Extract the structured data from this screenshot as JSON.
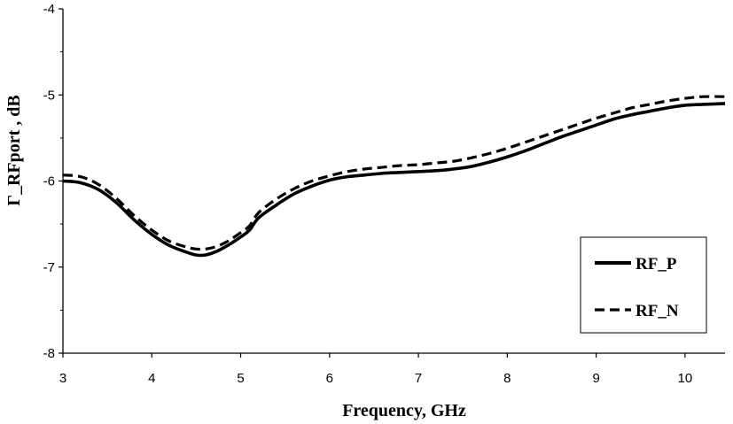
{
  "chart_data": {
    "type": "line",
    "xlabel": "Frequency, GHz",
    "ylabel": "Γ_RFport , dB",
    "xlim": [
      3,
      10.45
    ],
    "ylim": [
      -8,
      -4
    ],
    "xticks": [
      3,
      4,
      5,
      6,
      7,
      8,
      9,
      10
    ],
    "yticks": [
      -8,
      -7,
      -6,
      -5,
      -4
    ],
    "xtick_labels": [
      "3",
      "4",
      "5",
      "6",
      "7",
      "8",
      "9",
      "10"
    ],
    "ytick_labels": [
      "-8",
      "-7",
      "-6",
      "-5",
      "-4"
    ],
    "grid": false,
    "legend_position": "bottom-right",
    "series": [
      {
        "name": "RF_P",
        "style": "solid",
        "color": "#000000",
        "x": [
          3.0,
          3.2,
          3.4,
          3.6,
          3.8,
          4.0,
          4.2,
          4.4,
          4.5,
          4.6,
          4.7,
          4.8,
          4.9,
          5.0,
          5.1,
          5.2,
          5.4,
          5.6,
          5.8,
          6.0,
          6.2,
          6.4,
          6.6,
          6.8,
          7.0,
          7.2,
          7.4,
          7.6,
          7.8,
          8.0,
          8.2,
          8.4,
          8.6,
          8.8,
          9.0,
          9.2,
          9.4,
          9.6,
          9.8,
          10.0,
          10.2,
          10.45
        ],
        "y": [
          -6.0,
          -6.02,
          -6.1,
          -6.25,
          -6.45,
          -6.62,
          -6.75,
          -6.83,
          -6.86,
          -6.86,
          -6.83,
          -6.78,
          -6.72,
          -6.65,
          -6.57,
          -6.43,
          -6.28,
          -6.15,
          -6.06,
          -5.99,
          -5.95,
          -5.93,
          -5.91,
          -5.9,
          -5.89,
          -5.88,
          -5.86,
          -5.83,
          -5.78,
          -5.72,
          -5.65,
          -5.57,
          -5.49,
          -5.42,
          -5.35,
          -5.28,
          -5.23,
          -5.19,
          -5.15,
          -5.12,
          -5.11,
          -5.1
        ]
      },
      {
        "name": "RF_N",
        "style": "dashed",
        "color": "#000000",
        "x": [
          3.0,
          3.2,
          3.4,
          3.6,
          3.8,
          4.0,
          4.2,
          4.4,
          4.5,
          4.6,
          4.7,
          4.8,
          4.9,
          5.0,
          5.1,
          5.2,
          5.4,
          5.6,
          5.8,
          6.0,
          6.2,
          6.4,
          6.6,
          6.8,
          7.0,
          7.2,
          7.4,
          7.6,
          7.8,
          8.0,
          8.2,
          8.4,
          8.6,
          8.8,
          9.0,
          9.2,
          9.4,
          9.6,
          9.8,
          10.0,
          10.2,
          10.45
        ],
        "y": [
          -5.93,
          -5.95,
          -6.04,
          -6.2,
          -6.4,
          -6.57,
          -6.7,
          -6.77,
          -6.79,
          -6.79,
          -6.77,
          -6.73,
          -6.67,
          -6.6,
          -6.52,
          -6.37,
          -6.21,
          -6.09,
          -6.0,
          -5.94,
          -5.89,
          -5.86,
          -5.84,
          -5.82,
          -5.81,
          -5.79,
          -5.77,
          -5.73,
          -5.68,
          -5.62,
          -5.55,
          -5.48,
          -5.41,
          -5.34,
          -5.27,
          -5.21,
          -5.15,
          -5.11,
          -5.07,
          -5.04,
          -5.02,
          -5.02
        ]
      }
    ]
  }
}
